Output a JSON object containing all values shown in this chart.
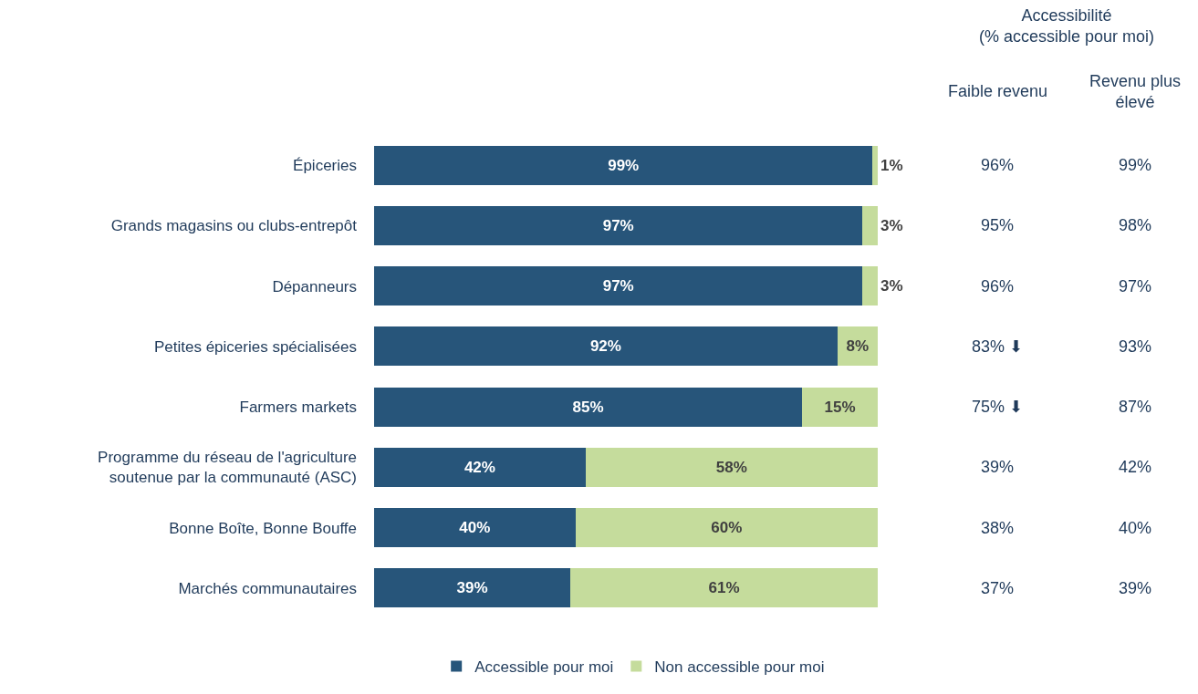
{
  "chart_data": {
    "type": "bar",
    "orientation": "horizontal",
    "stacked": true,
    "data_labels": true,
    "legend": "bottom",
    "tick_labels": "y",
    "categories": [
      "Épiceries",
      "Grands magasins ou clubs-entrepôt",
      "Dépanneurs",
      "Petites épiceries spécialisées",
      "Farmers markets",
      "Programme du réseau de l'agriculture\nsoutenue par la communauté (ASC)",
      "Bonne Boîte, Bonne Bouffe",
      "Marchés communautaires"
    ],
    "series": [
      {
        "name": "Accessible pour moi",
        "color": "#27557a",
        "values": [
          99,
          97,
          97,
          92,
          85,
          42,
          40,
          39
        ],
        "value_labels": [
          "99%",
          "97%",
          "97%",
          "92%",
          "85%",
          "42%",
          "40%",
          "39%"
        ]
      },
      {
        "name": "Non accessible pour moi",
        "color": "#c5dc9c",
        "values": [
          1,
          3,
          3,
          8,
          15,
          58,
          60,
          61
        ],
        "value_labels": [
          "1%",
          "3%",
          "3%",
          "8%",
          "15%",
          "58%",
          "60%",
          "61%"
        ]
      }
    ],
    "annotations": [
      "Accessibilité\n(% accessible pour moi)",
      "Faible revenu",
      "Revenu plus\nélevé",
      "96%",
      "99%",
      "95%",
      "98%",
      "96%",
      "97%",
      "83% ⬇",
      "93%",
      "75% ⬇",
      "87%",
      "39%",
      "42%",
      "38%",
      "40%",
      "37%",
      "39%"
    ]
  }
}
